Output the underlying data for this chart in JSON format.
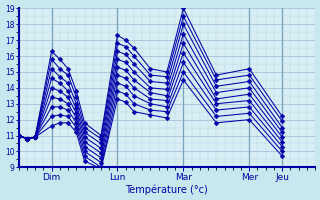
{
  "xlabel": "Température (°c)",
  "bg_color": "#c8e8f0",
  "plot_bg": "#d8eef4",
  "line_color": "#0000aa",
  "ylim_min": 9,
  "ylim_max": 19,
  "day_labels": [
    "Dim",
    "Lun",
    "Mar",
    "Mer",
    "Jeu"
  ],
  "day_x": [
    12,
    36,
    60,
    84,
    96
  ],
  "xlim": [
    0,
    108
  ],
  "x_vals": [
    0,
    3,
    6,
    12,
    15,
    18,
    21,
    24,
    30,
    36,
    39,
    42,
    48,
    54,
    60,
    72,
    84,
    96
  ],
  "series": [
    [
      11.0,
      10.8,
      10.9,
      16.3,
      15.8,
      15.2,
      13.8,
      11.8,
      11.0,
      17.3,
      17.0,
      16.5,
      15.2,
      15.0,
      19.0,
      14.8,
      15.2,
      12.2
    ],
    [
      11.0,
      10.8,
      10.9,
      15.8,
      15.2,
      14.8,
      13.4,
      11.5,
      10.8,
      16.8,
      16.6,
      16.0,
      14.8,
      14.7,
      18.5,
      14.5,
      14.8,
      11.9
    ],
    [
      11.0,
      10.8,
      10.9,
      15.2,
      14.7,
      14.3,
      13.0,
      11.2,
      10.5,
      16.3,
      16.1,
      15.5,
      14.4,
      14.3,
      18.0,
      14.1,
      14.4,
      11.5
    ],
    [
      11.0,
      10.8,
      10.9,
      14.6,
      14.3,
      13.8,
      12.7,
      10.9,
      10.2,
      15.8,
      15.6,
      15.0,
      14.0,
      13.9,
      17.4,
      13.7,
      14.0,
      11.2
    ],
    [
      11.0,
      10.8,
      10.9,
      14.0,
      13.8,
      13.4,
      12.4,
      10.6,
      9.9,
      15.3,
      15.1,
      14.5,
      13.7,
      13.5,
      16.8,
      13.3,
      13.6,
      10.9
    ],
    [
      11.0,
      10.8,
      10.9,
      13.4,
      13.3,
      13.0,
      12.1,
      10.3,
      9.6,
      14.8,
      14.6,
      14.0,
      13.3,
      13.2,
      16.2,
      13.0,
      13.2,
      10.6
    ],
    [
      11.0,
      10.8,
      10.9,
      12.8,
      12.8,
      12.6,
      11.8,
      10.0,
      9.3,
      14.3,
      14.1,
      13.5,
      13.0,
      12.8,
      15.6,
      12.6,
      12.8,
      10.3
    ],
    [
      11.0,
      10.8,
      10.9,
      12.2,
      12.3,
      12.2,
      11.5,
      9.7,
      9.0,
      13.8,
      13.6,
      13.0,
      12.6,
      12.5,
      15.0,
      12.2,
      12.4,
      10.0
    ],
    [
      11.0,
      10.8,
      10.9,
      11.6,
      11.8,
      11.8,
      11.2,
      9.4,
      8.9,
      13.3,
      13.1,
      12.5,
      12.3,
      12.1,
      14.5,
      11.8,
      12.0,
      9.7
    ]
  ]
}
